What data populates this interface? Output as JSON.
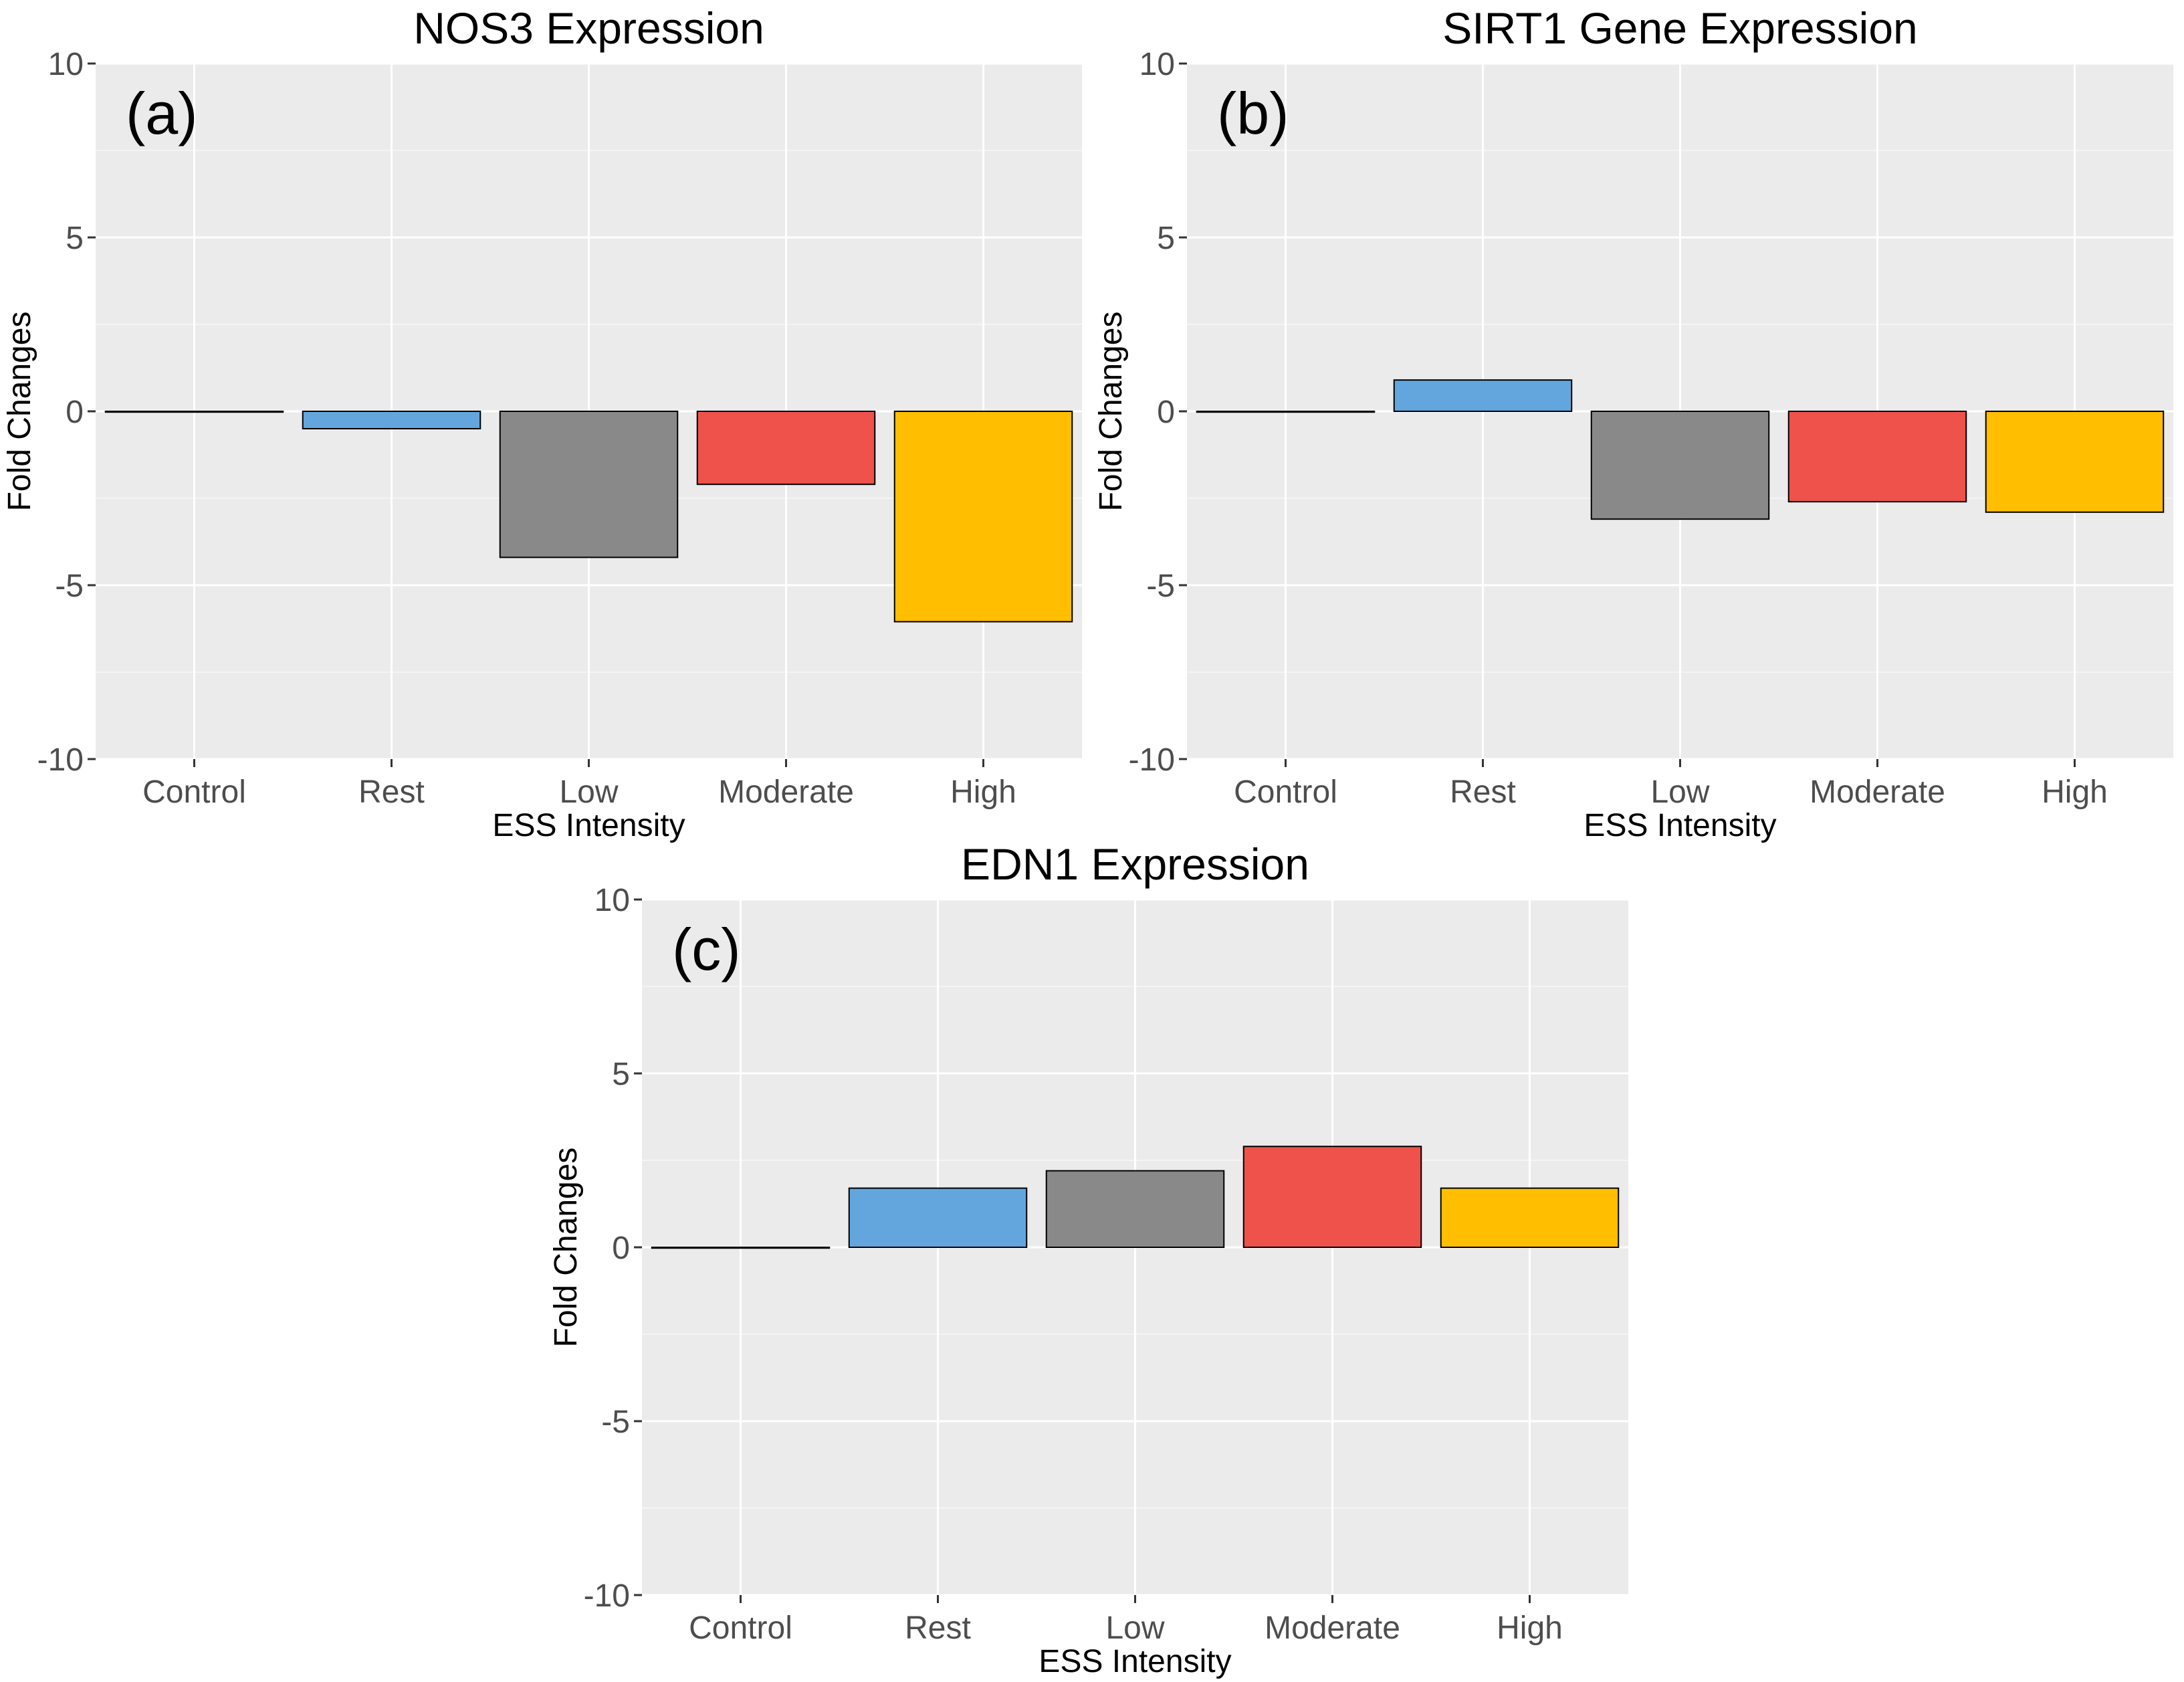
{
  "figure": {
    "colors": {
      "panel_bg": "#ebebeb",
      "grid_major": "#ffffff",
      "tick_text": "#4d4d4d",
      "title_text": "#000000",
      "bar_stroke": "#000000"
    }
  },
  "chart_data": [
    {
      "type": "bar",
      "title": "NOS3 Expression",
      "panel_label": "(a)",
      "xlabel": "ESS Intensity",
      "ylabel": "Fold Changes",
      "ylim": [
        -10,
        10
      ],
      "yticks": [
        -10,
        -5,
        0,
        5,
        10
      ],
      "ytick_labels": [
        "-10",
        "-5",
        "0",
        "5",
        "10"
      ],
      "categories": [
        "Control",
        "Rest",
        "Low",
        "Moderate",
        "High"
      ],
      "values": [
        0,
        -0.5,
        -4.2,
        -2.1,
        -6.05
      ],
      "colors": [
        "#ffffff",
        "#62a6dd",
        "#898989",
        "#ee524a",
        "#ffbf00"
      ]
    },
    {
      "type": "bar",
      "title": "SIRT1 Gene Expression",
      "panel_label": "(b)",
      "xlabel": "ESS Intensity",
      "ylabel": "Fold Changes",
      "ylim": [
        -10,
        10
      ],
      "yticks": [
        -10,
        -5,
        0,
        5,
        10
      ],
      "ytick_labels": [
        "-10",
        "-5",
        "0",
        "5",
        "10"
      ],
      "categories": [
        "Control",
        "Rest",
        "Low",
        "Moderate",
        "High"
      ],
      "values": [
        0,
        0.9,
        -3.1,
        -2.6,
        -2.9
      ],
      "colors": [
        "#ffffff",
        "#62a6dd",
        "#898989",
        "#ee524a",
        "#ffbf00"
      ]
    },
    {
      "type": "bar",
      "title": "EDN1 Expression",
      "panel_label": "(c)",
      "xlabel": "ESS Intensity",
      "ylabel": "Fold Changes",
      "ylim": [
        -10,
        10
      ],
      "yticks": [
        -10,
        -5,
        0,
        5,
        10
      ],
      "ytick_labels": [
        "-10",
        "-5",
        "0",
        "5",
        "10"
      ],
      "categories": [
        "Control",
        "Rest",
        "Low",
        "Moderate",
        "High"
      ],
      "values": [
        0,
        1.7,
        2.2,
        2.9,
        1.7
      ],
      "colors": [
        "#ffffff",
        "#62a6dd",
        "#898989",
        "#ee524a",
        "#ffbf00"
      ]
    }
  ]
}
